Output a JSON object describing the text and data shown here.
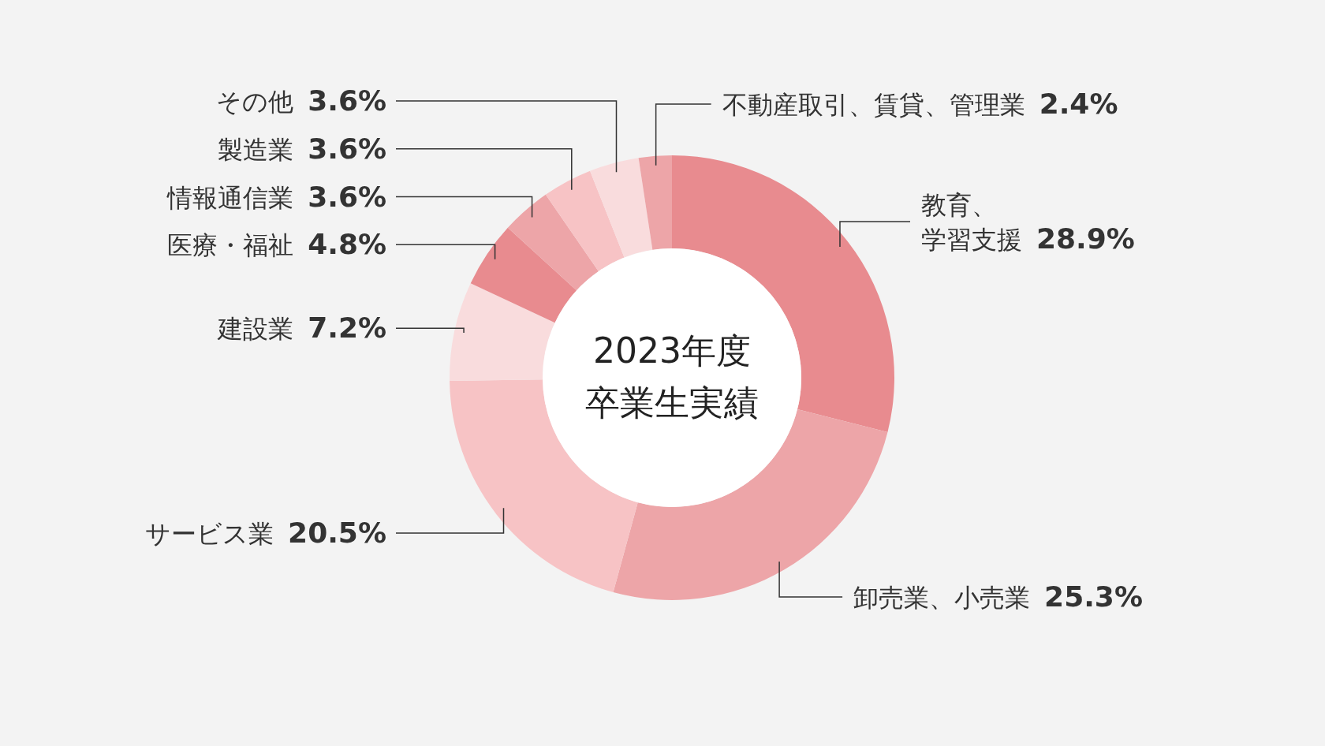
{
  "chart_data": {
    "type": "donut",
    "title": "2023年度卒業生実績",
    "categories": [
      "教育、学習支援",
      "卸売業、小売業",
      "サービス業",
      "建設業",
      "医療・福祉",
      "情報通信業",
      "製造業",
      "その他",
      "不動産取引、賃貸、管理業"
    ],
    "values": [
      28.9,
      25.3,
      20.5,
      7.2,
      4.8,
      3.6,
      3.6,
      3.6,
      2.4
    ],
    "value_labels": [
      "28.9%",
      "25.3%",
      "20.5%",
      "7.2%",
      "4.8%",
      "3.6%",
      "3.6%",
      "3.6%",
      "2.4%"
    ],
    "colors": [
      "#e88b8f",
      "#eda5a8",
      "#f7c3c5",
      "#f9dcdd",
      "#e88b8f",
      "#eda5a8",
      "#f7c3c5",
      "#f9dcdd",
      "#eda5a8"
    ]
  }
}
